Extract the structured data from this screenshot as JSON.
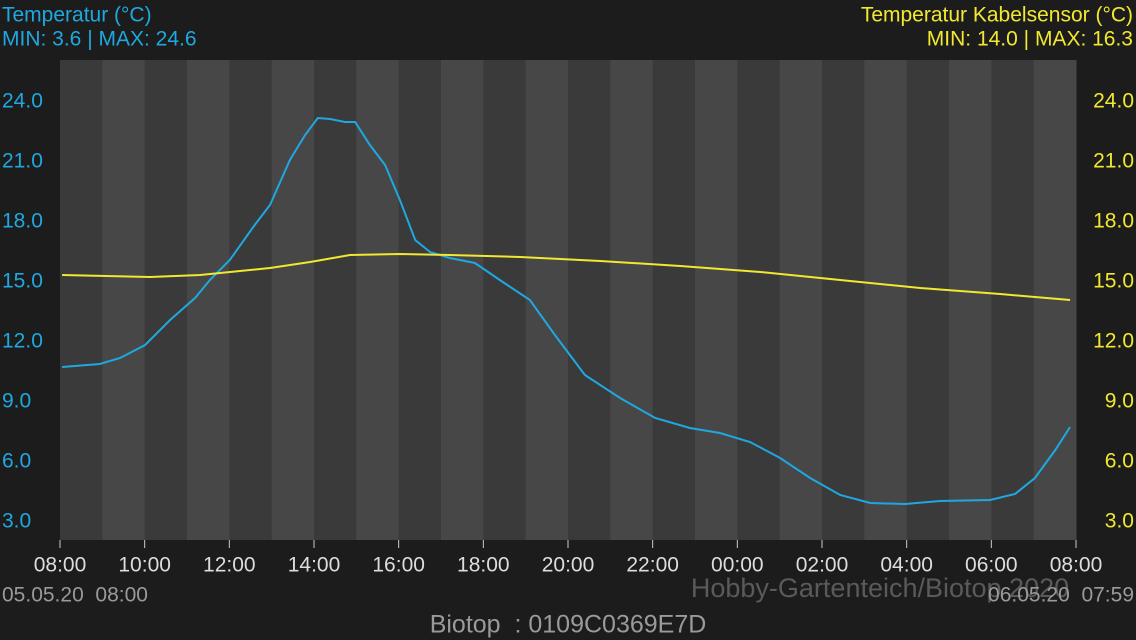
{
  "chart_data": {
    "type": "line",
    "title": "Temperatur (°C)",
    "subtitle": "MIN: 3.6 | MAX: 24.6",
    "title2": "Temperatur Kabelsensor (°C)",
    "subtitle2": "MIN: 14.0 | MAX: 16.3",
    "start_label": "05.05.20  08:00",
    "end_label": "06.05.20  07:59",
    "watermark": "Hobby-Gartenteich/Biotop 2020",
    "footer": "Biotop  : 0109C0369E7D",
    "xlim": [
      0,
      24
    ],
    "xticks": [
      {
        "value": 0,
        "label": "08:00"
      },
      {
        "value": 2,
        "label": "10:00"
      },
      {
        "value": 4,
        "label": "12:00"
      },
      {
        "value": 6,
        "label": "14:00"
      },
      {
        "value": 8,
        "label": "16:00"
      },
      {
        "value": 10,
        "label": "18:00"
      },
      {
        "value": 12,
        "label": "20:00"
      },
      {
        "value": 14,
        "label": "22:00"
      },
      {
        "value": 16,
        "label": "00:00"
      },
      {
        "value": 18,
        "label": "02:00"
      },
      {
        "value": 20,
        "label": "04:00"
      },
      {
        "value": 22,
        "label": "06:00"
      },
      {
        "value": 24,
        "label": "08:00"
      }
    ],
    "ylim": [
      2.1,
      26.1
    ],
    "yticks": [
      {
        "value": 3,
        "label": "3.0"
      },
      {
        "value": 6,
        "label": "6.0"
      },
      {
        "value": 9,
        "label": "9.0"
      },
      {
        "value": 12,
        "label": "12.0"
      },
      {
        "value": 15,
        "label": "15.0"
      },
      {
        "value": 18,
        "label": "18.0"
      },
      {
        "value": 21,
        "label": "21.0"
      },
      {
        "value": 24,
        "label": "24.0"
      }
    ],
    "y2lim": [
      2.1,
      26.1
    ],
    "y2ticks": [
      {
        "value": 3,
        "label": "3.0"
      },
      {
        "value": 6,
        "label": "6.0"
      },
      {
        "value": 9,
        "label": "9.0"
      },
      {
        "value": 12,
        "label": "12.0"
      },
      {
        "value": 15,
        "label": "15.0"
      },
      {
        "value": 18,
        "label": "18.0"
      },
      {
        "value": 21,
        "label": "21.0"
      },
      {
        "value": 24,
        "label": "24.0"
      }
    ],
    "series": [
      {
        "color": "#1fa8e0",
        "x": [
          0.05,
          0.94,
          1.42,
          2.01,
          2.6,
          3.19,
          3.54,
          4.01,
          4.6,
          4.96,
          5.43,
          5.79,
          6.09,
          6.38,
          6.73,
          6.97,
          7.32,
          7.68,
          8.03,
          8.39,
          8.74,
          9.21,
          9.8,
          10.39,
          11.1,
          11.69,
          12.4,
          13.23,
          14.06,
          14.88,
          15.59,
          16.3,
          17.01,
          17.72,
          18.43,
          19.14,
          19.96,
          20.79,
          21.97,
          22.56,
          23.03,
          23.51,
          23.86
        ],
        "values": [
          10.75,
          10.9,
          11.2,
          11.85,
          13.1,
          14.2,
          15.1,
          16.1,
          17.85,
          18.85,
          21.1,
          22.35,
          23.2,
          23.15,
          23.0,
          23.0,
          21.85,
          20.85,
          19.1,
          17.1,
          16.5,
          16.2,
          15.95,
          15.1,
          14.1,
          12.35,
          10.35,
          9.2,
          8.2,
          7.7,
          7.45,
          7.0,
          6.2,
          5.2,
          4.35,
          3.95,
          3.9,
          4.05,
          4.1,
          4.4,
          5.2,
          6.6,
          7.75
        ]
      },
      {
        "color": "#f2e830",
        "axis": "y2",
        "x": [
          0.05,
          2.13,
          3.31,
          4.96,
          5.91,
          6.85,
          8.03,
          9.21,
          10.87,
          12.76,
          14.65,
          16.54,
          18.43,
          20.32,
          22.21,
          23.86
        ],
        "values": [
          15.35,
          15.25,
          15.35,
          15.7,
          16.0,
          16.35,
          16.4,
          16.35,
          16.25,
          16.05,
          15.8,
          15.5,
          15.1,
          14.7,
          14.4,
          14.1
        ]
      }
    ]
  }
}
